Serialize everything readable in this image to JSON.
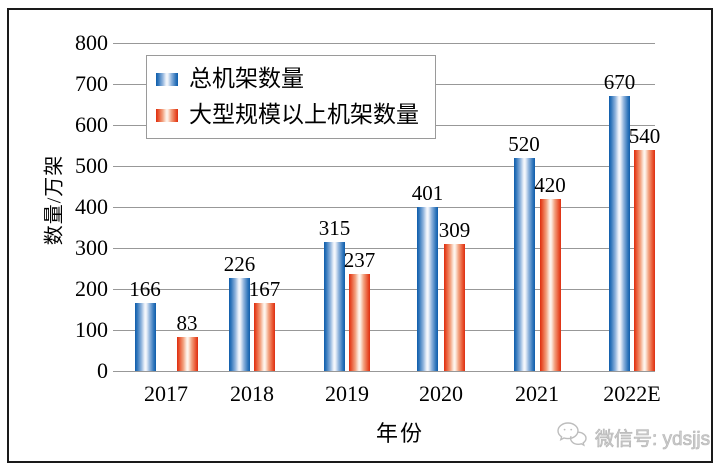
{
  "chart_data": {
    "type": "bar",
    "categories": [
      "2017",
      "2018",
      "2019",
      "2020",
      "2021",
      "2022E"
    ],
    "series": [
      {
        "name": "总机架数量",
        "color": "#0e5dab",
        "values": [
          166,
          226,
          315,
          401,
          520,
          670
        ]
      },
      {
        "name": "大型规模以上机架数量",
        "color": "#dd2d10",
        "values": [
          83,
          167,
          237,
          309,
          420,
          540
        ]
      }
    ],
    "title": "",
    "xlabel": "年份",
    "ylabel": "数量/万架",
    "ylim": [
      0,
      800
    ],
    "ytick_step": 100,
    "yticks": [
      0,
      100,
      200,
      300,
      400,
      500,
      600,
      700,
      800
    ],
    "grid": "horizontal",
    "gridline_color": "#989898",
    "legend_position": "upper-left-inside",
    "data_labels_shown": true
  },
  "watermark": {
    "icon": "wechat-icon",
    "label": "微信号: ydsjjs"
  }
}
